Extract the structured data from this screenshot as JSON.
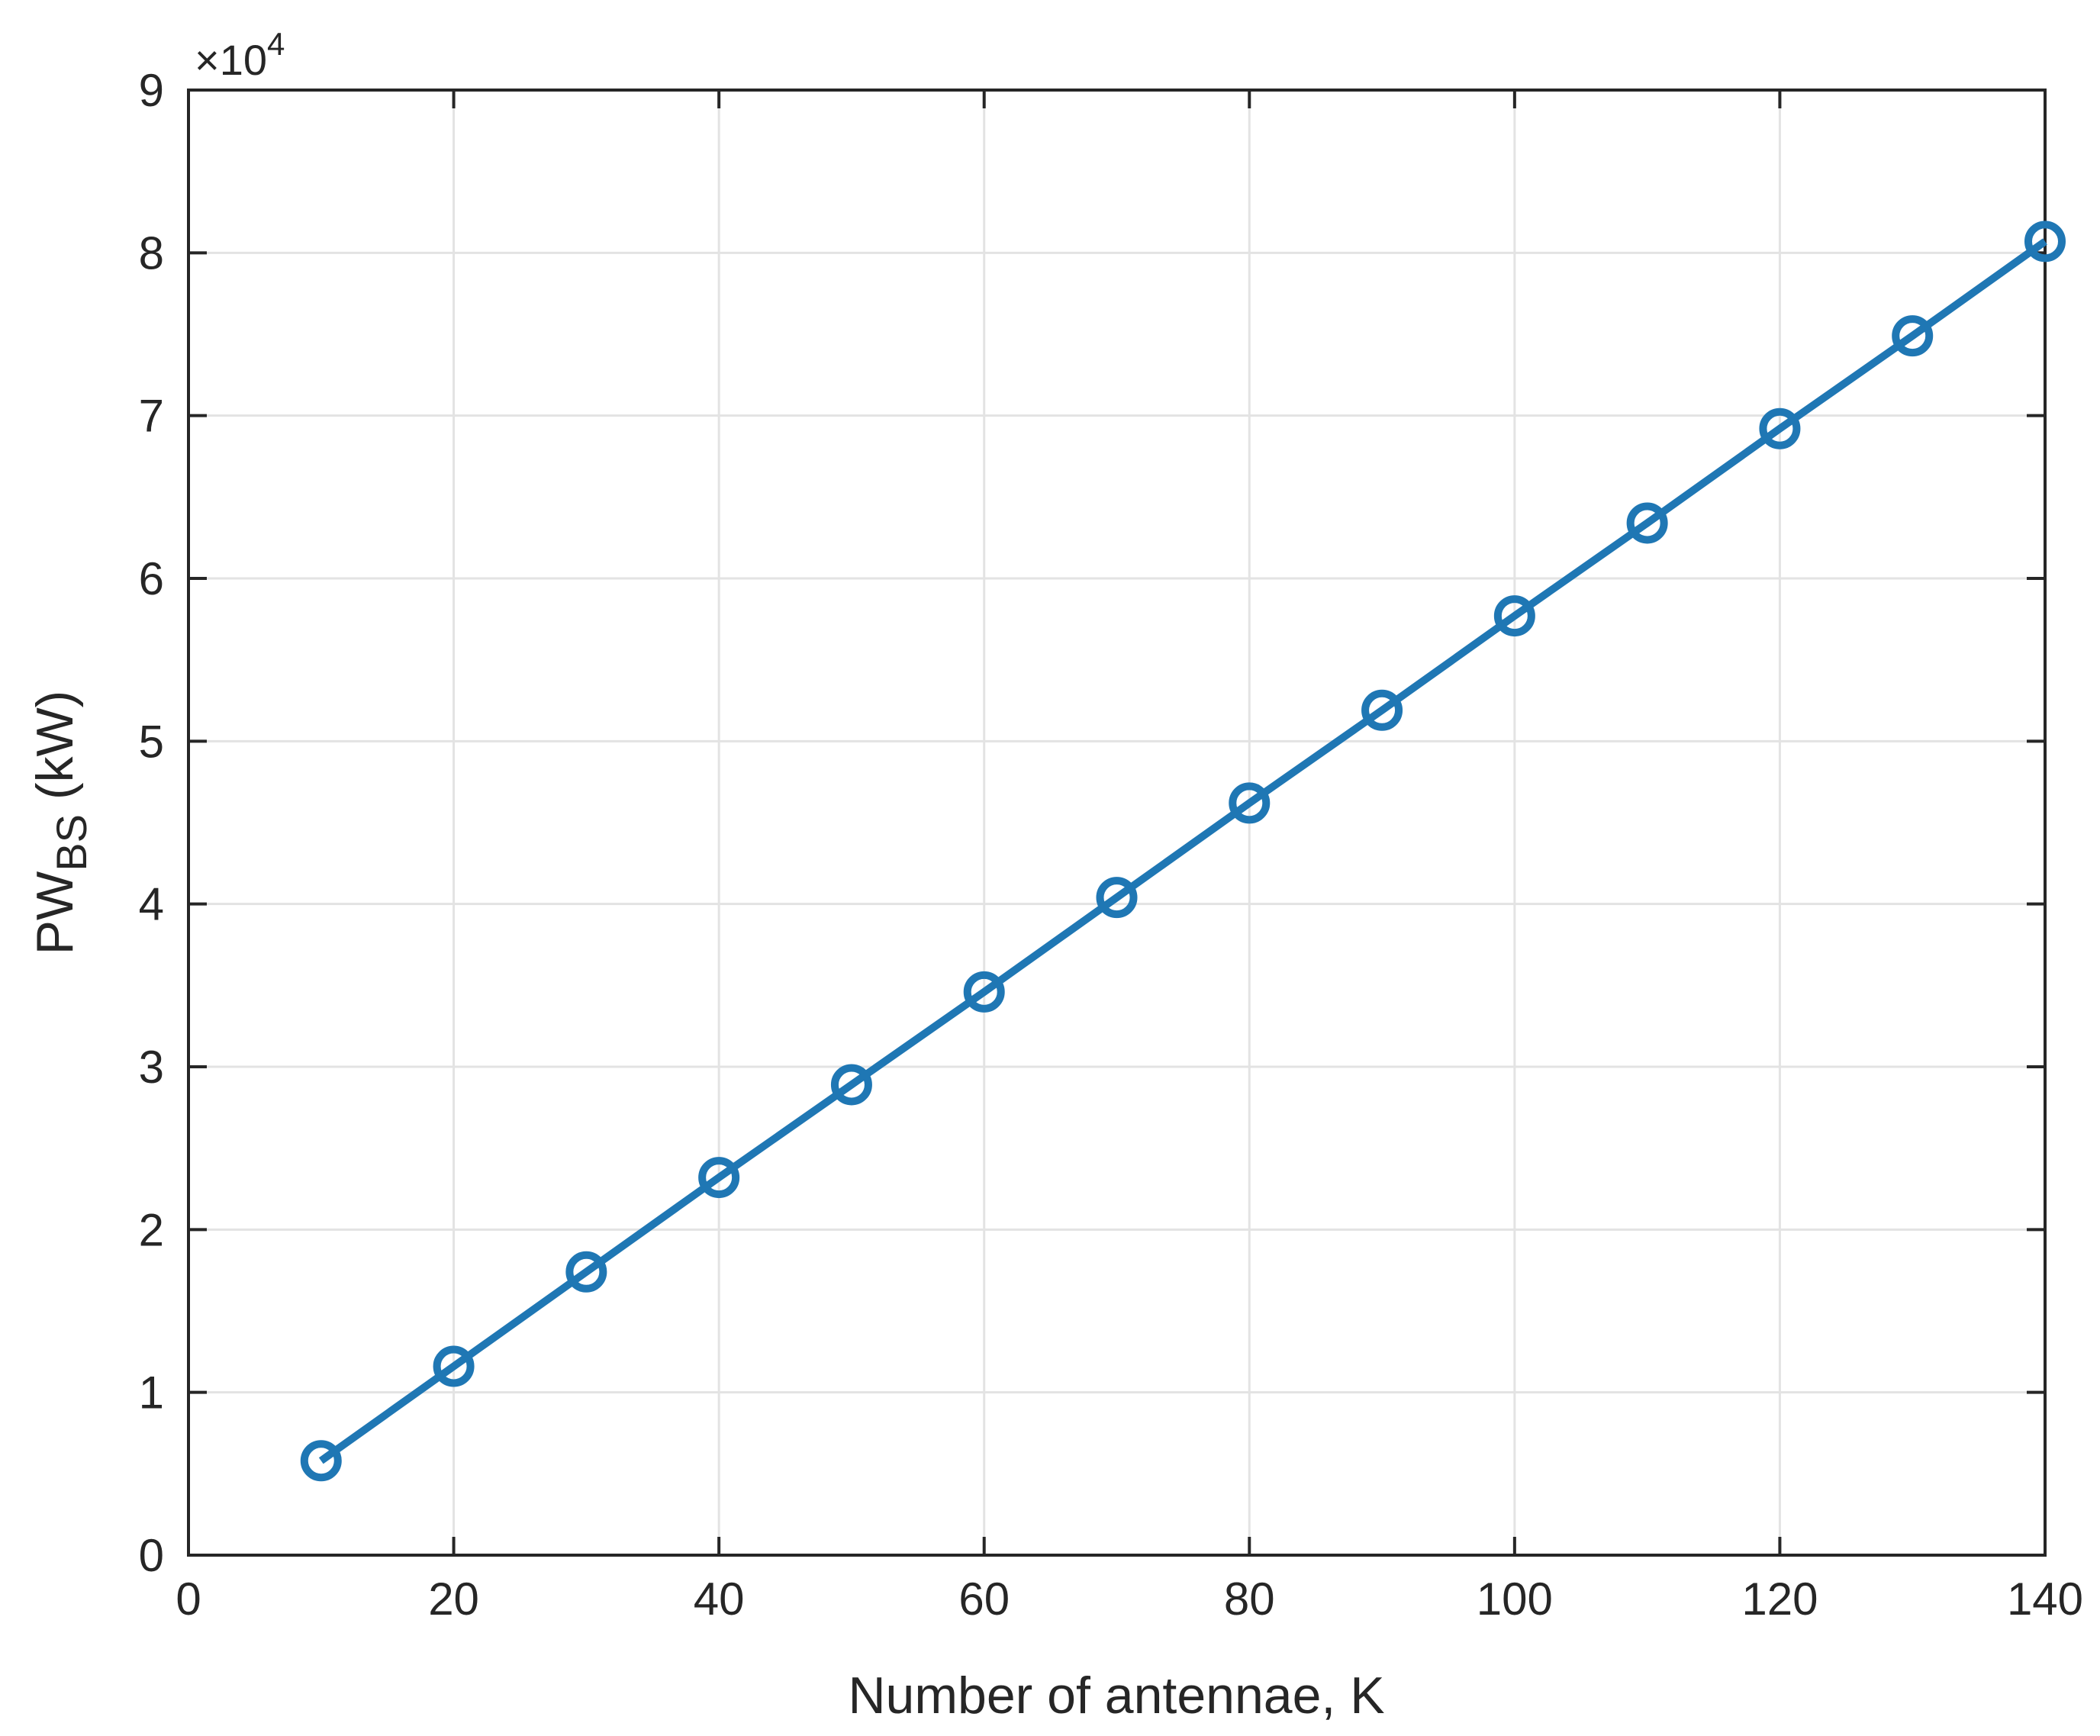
{
  "chart_data": {
    "type": "line",
    "title": "",
    "xlabel": "Number of antennae, K",
    "ylabel": {
      "main": "PW",
      "subscript": "BS",
      "unit": " (kW)"
    },
    "y_exponent": {
      "prefix": "×10",
      "power": "4"
    },
    "xlim": [
      0,
      140
    ],
    "ylim": [
      0,
      9
    ],
    "x_ticks": [
      "0",
      "20",
      "40",
      "60",
      "80",
      "100",
      "120",
      "140"
    ],
    "y_ticks": [
      "0",
      "1",
      "2",
      "3",
      "4",
      "5",
      "6",
      "7",
      "8",
      "9"
    ],
    "grid": true,
    "series": [
      {
        "color": "#1f77b4",
        "marker": "circle",
        "x": [
          10,
          20,
          30,
          40,
          50,
          60,
          70,
          80,
          90,
          100,
          110,
          120,
          130,
          140
        ],
        "y": [
          0.58,
          1.16,
          1.74,
          2.32,
          2.89,
          3.46,
          4.04,
          4.62,
          5.19,
          5.77,
          6.34,
          6.92,
          7.49,
          8.07
        ]
      }
    ]
  }
}
